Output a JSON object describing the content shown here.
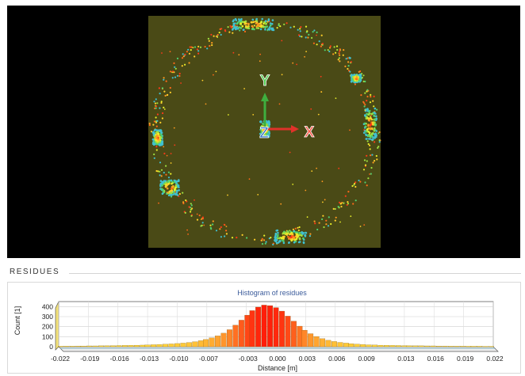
{
  "viewport": {
    "axes": {
      "x_label": "X",
      "y_label": "Y",
      "z_label": "Z"
    },
    "colors": {
      "background": "#000000",
      "plane": "#4a4a16",
      "x_axis": "#e0322a",
      "y_axis": "#3fae3f",
      "z_axis": "#3a78c9"
    }
  },
  "section": {
    "title": "RESIDUES"
  },
  "chart_data": {
    "type": "bar",
    "title": "Histogram of residues",
    "xlabel": "Distance [m]",
    "ylabel": "Count [1]",
    "ylim": [
      0,
      450
    ],
    "xlim": [
      -0.022,
      0.022
    ],
    "yticks": [
      "0",
      "100",
      "200",
      "300",
      "400"
    ],
    "xticks": [
      "-0.022",
      "-0.019",
      "-0.016",
      "-0.013",
      "-0.010",
      "-0.007",
      "-0.003",
      "0.000",
      "0.003",
      "0.006",
      "0.009",
      "0.013",
      "0.016",
      "0.019",
      "0.022"
    ],
    "x": [
      -0.0218,
      -0.0212,
      -0.0206,
      -0.02,
      -0.0195,
      -0.0189,
      -0.0183,
      -0.0177,
      -0.0171,
      -0.0165,
      -0.0159,
      -0.0153,
      -0.0147,
      -0.0141,
      -0.0135,
      -0.013,
      -0.0124,
      -0.0118,
      -0.0112,
      -0.0106,
      -0.01,
      -0.0094,
      -0.0088,
      -0.0082,
      -0.0076,
      -0.0071,
      -0.0065,
      -0.0059,
      -0.0053,
      -0.0047,
      -0.0041,
      -0.0035,
      -0.0029,
      -0.0024,
      -0.0018,
      -0.0012,
      -0.0006,
      0.0,
      0.0006,
      0.0012,
      0.0018,
      0.0024,
      0.0029,
      0.0035,
      0.0041,
      0.0047,
      0.0053,
      0.0059,
      0.0065,
      0.0071,
      0.0076,
      0.0082,
      0.0088,
      0.0094,
      0.01,
      0.0106,
      0.0112,
      0.0118,
      0.0124,
      0.013,
      0.0135,
      0.0141,
      0.0147,
      0.0153,
      0.0159,
      0.0165,
      0.0171,
      0.0177,
      0.0183,
      0.0189,
      0.0195,
      0.02,
      0.0206,
      0.0212,
      0.0218
    ],
    "values": [
      5,
      6,
      6,
      7,
      7,
      8,
      8,
      9,
      10,
      11,
      12,
      13,
      14,
      15,
      16,
      18,
      20,
      22,
      25,
      28,
      32,
      36,
      42,
      50,
      60,
      72,
      88,
      108,
      135,
      170,
      215,
      265,
      315,
      360,
      395,
      415,
      410,
      390,
      355,
      305,
      255,
      205,
      165,
      130,
      102,
      80,
      64,
      52,
      43,
      36,
      30,
      26,
      22,
      19,
      17,
      15,
      14,
      13,
      12,
      11,
      10,
      9,
      9,
      8,
      8,
      7,
      7,
      6,
      6,
      6,
      5,
      5,
      5,
      4,
      4
    ],
    "grid": true,
    "legend": "none"
  }
}
